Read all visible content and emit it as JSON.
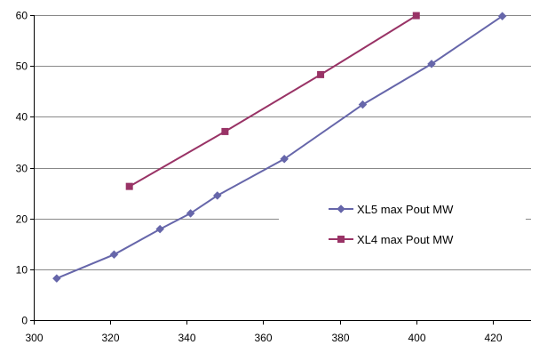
{
  "chart_data": {
    "type": "line",
    "title": "",
    "xlabel": "",
    "ylabel": "",
    "xlim": [
      300,
      430
    ],
    "ylim": [
      0,
      60
    ],
    "x_ticks": [
      "300",
      "320",
      "340",
      "360",
      "380",
      "400",
      "420"
    ],
    "y_ticks": [
      "0",
      "10",
      "20",
      "30",
      "40",
      "50",
      "60"
    ],
    "grid": "horizontal",
    "legend_position": "right",
    "series": [
      {
        "name": "XL5 max Pout MW",
        "color": "#6666aa",
        "marker": "diamond",
        "points": [
          [
            306,
            8.2
          ],
          [
            321,
            12.9
          ],
          [
            333,
            17.9
          ],
          [
            341,
            21.0
          ],
          [
            348,
            24.5
          ],
          [
            365.5,
            31.7
          ],
          [
            386,
            42.4
          ],
          [
            404,
            50.4
          ],
          [
            422.5,
            59.8
          ]
        ]
      },
      {
        "name": "XL4 max Pout MW",
        "color": "#993366",
        "marker": "square",
        "points": [
          [
            325,
            26.3
          ],
          [
            350,
            37.1
          ],
          [
            375,
            48.3
          ],
          [
            400,
            59.9
          ]
        ]
      }
    ]
  }
}
